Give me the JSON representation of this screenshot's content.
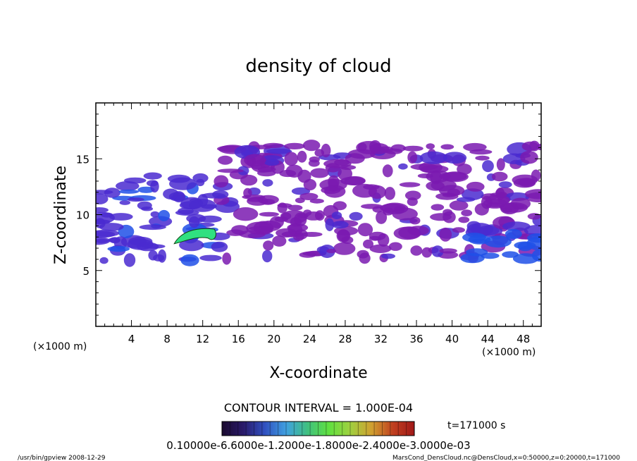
{
  "chart_data": {
    "type": "heatmap",
    "title": "density of cloud",
    "xlabel": "X-coordinate",
    "ylabel": "Z-coordinate",
    "x_unit": "(×1000 m)",
    "y_unit": "(×1000 m)",
    "xlim": [
      0,
      50
    ],
    "ylim": [
      0,
      20
    ],
    "x_ticks": [
      "4",
      "8",
      "12",
      "16",
      "20",
      "24",
      "28",
      "32",
      "36",
      "40",
      "44",
      "48"
    ],
    "y_ticks": [
      "5",
      "10",
      "15"
    ],
    "contour_interval": "CONTOUR INTERVAL = 1.000E-04",
    "time_label": "t=171000 s",
    "colorbar_labels": "0.10000e-6.6000e-1.2000e-1.8000e-2.4000e-3.0000e-03",
    "colorbar_colors": [
      "#1a0a2e",
      "#2a1a6a",
      "#3050c0",
      "#40a0e0",
      "#40c080",
      "#60e040",
      "#a0d040",
      "#d0a030",
      "#c04020",
      "#a01818"
    ],
    "cloud_colors": {
      "outer": "#7a1ab0",
      "mid": "#4a2ad0",
      "dense": "#2050e8",
      "core": "#30e080"
    },
    "regions": [
      {
        "x": [
          0,
          14
        ],
        "z": [
          5.8,
          13.5
        ],
        "level": "mid"
      },
      {
        "x": [
          8,
          14
        ],
        "z": [
          6,
          8.8
        ],
        "level": "core"
      },
      {
        "x": [
          14,
          50
        ],
        "z": [
          6,
          16.2
        ],
        "level": "outer"
      },
      {
        "x": [
          42,
          50
        ],
        "z": [
          6,
          8.5
        ],
        "level": "dense"
      }
    ]
  },
  "footer": {
    "left": "/usr/bin/gpview   2008-12-29",
    "right": "MarsCond_DensCloud.nc@DensCloud,x=0:50000,z=0:20000,t=171000"
  }
}
